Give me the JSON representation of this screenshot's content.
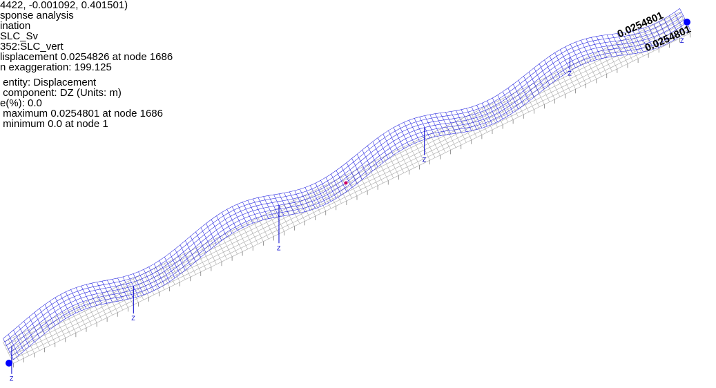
{
  "info_panel": {
    "header_lines": [
      "4422, -0.001092, 0.401501)",
      "sponse analysis",
      "ination",
      "SLC_Sv",
      "352:SLC_vert",
      "lisplacement 0.0254826 at node 1686",
      "n exaggeration: 199.125"
    ],
    "result_lines": [
      " entity: Displacement",
      " component: DZ (Units: m)",
      "e(%): 0.0",
      " maximum 0.0254801 at node 1686",
      " minimum 0.0 at node 1"
    ]
  },
  "model_view": {
    "mesh_color": "#1f1fe0",
    "undeformed_color": "#a8a8a8",
    "support_color": "#0000cc",
    "node_marker_color": "#0000ff",
    "center_marker_color": "#cc0066",
    "axis_label": "Z",
    "max_labels": [
      "0.0254801",
      "0.0254801"
    ]
  }
}
